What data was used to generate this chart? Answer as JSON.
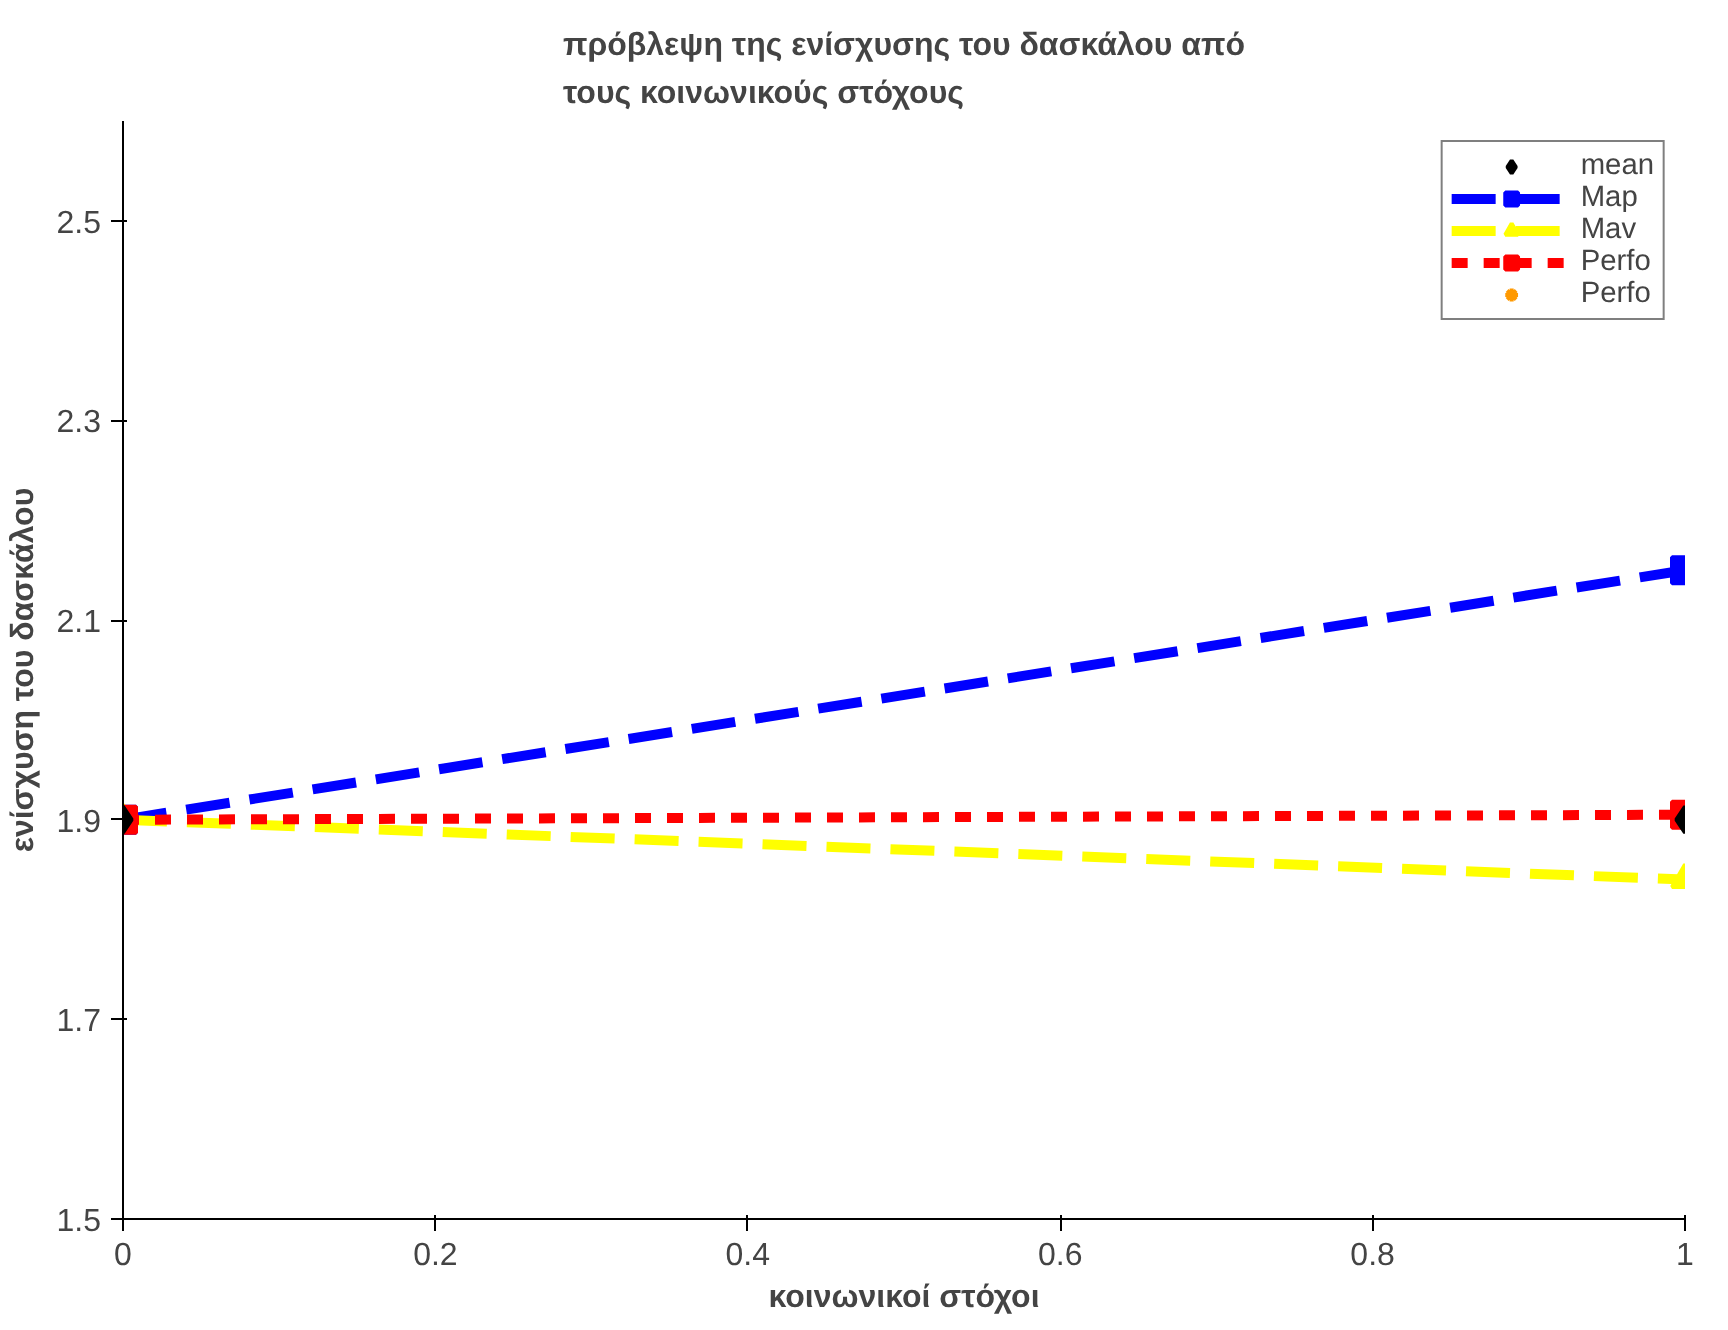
{
  "chart_data": {
    "type": "line",
    "title": "πρόβλεψη της ενίσχυσης του δασκάλου από\nτους κοινωνικούς στόχους",
    "xlabel": "κοινωνικοί στόχοι",
    "ylabel": "ενίσχυση του δασκάλου",
    "x": [
      0,
      1
    ],
    "series": [
      {
        "name": "mean",
        "type": "scatter",
        "color": "#000000",
        "marker": "diamond",
        "values": [
          1.9,
          1.9
        ]
      },
      {
        "name": "Map",
        "color": "#0000ff",
        "marker": "square",
        "line_style": "dashed",
        "values": [
          1.9,
          2.15
        ]
      },
      {
        "name": "Mav",
        "color": "#ffff00",
        "marker": "triangle",
        "line_style": "dashed",
        "values": [
          1.9,
          1.84
        ]
      },
      {
        "name": "Perfo",
        "color": "#ff0000",
        "marker": "square",
        "line_style": "dotted",
        "values": [
          1.9,
          1.905
        ]
      },
      {
        "name": "Perfo",
        "type": "scatter",
        "color": "#ff9900",
        "marker": "star",
        "values": [
          null,
          null
        ]
      }
    ],
    "xlim": [
      0,
      1
    ],
    "ylim": [
      1.5,
      2.6
    ],
    "xticks": [
      0,
      0.2,
      0.4,
      0.6,
      0.8,
      1
    ],
    "yticks": [
      1.5,
      1.7,
      1.9,
      2.1,
      2.3,
      2.5
    ],
    "grid": false,
    "legend": "top right"
  }
}
